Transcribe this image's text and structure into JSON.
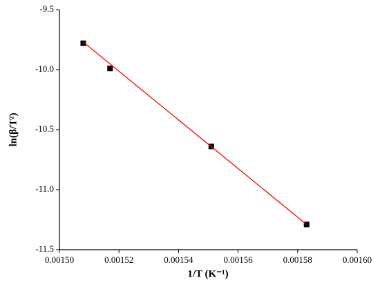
{
  "chart_data": {
    "type": "scatter",
    "xlabel": "1/T (K⁻¹)",
    "ylabel": "ln(β/T²)",
    "series": [
      {
        "style": "markers",
        "color": "#000000",
        "x": [
          0.001508,
          0.001517,
          0.001551,
          0.001583
        ],
        "values": [
          -9.78,
          -9.99,
          -10.64,
          -11.29
        ]
      },
      {
        "style": "line",
        "color": "#ff0000",
        "x": [
          0.001508,
          0.001583
        ],
        "values": [
          -9.77,
          -11.29
        ]
      }
    ],
    "xlim": [
      0.0015,
      0.0016
    ],
    "xticks": [
      {
        "value": 0.0015,
        "label": "0.00150"
      },
      {
        "value": 0.00152,
        "label": "0.00152"
      },
      {
        "value": 0.00154,
        "label": "0.00154"
      },
      {
        "value": 0.00156,
        "label": "0.00156"
      },
      {
        "value": 0.00158,
        "label": "0.00158"
      },
      {
        "value": 0.0016,
        "label": "0.00160"
      }
    ],
    "ylim": [
      -11.5,
      -9.5
    ],
    "yticks": [
      -9.5,
      {
        "value": -10,
        "label": "-10.0"
      },
      -10.5,
      {
        "value": -11,
        "label": "-11.0"
      },
      -11.5
    ],
    "grid": false
  }
}
